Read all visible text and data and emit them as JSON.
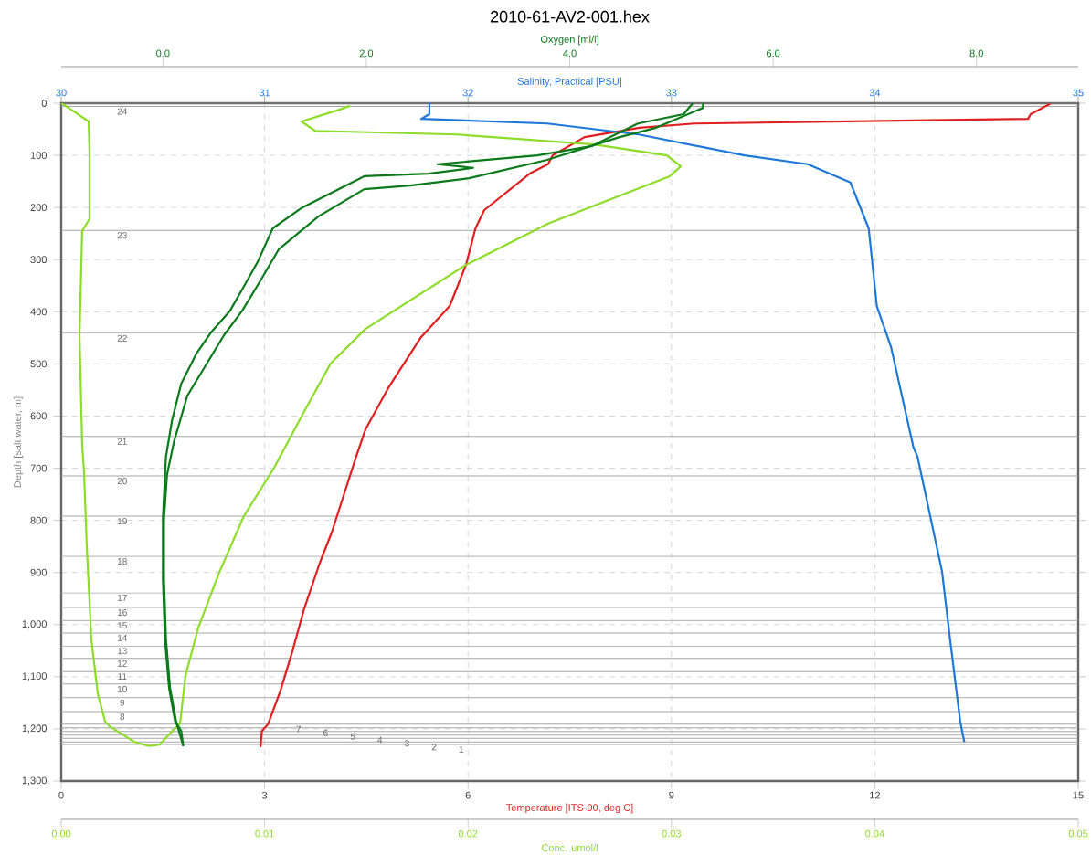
{
  "chart_data": [
    {
      "type": "line",
      "title": "2010-61-AV2-001.hex",
      "xlabel": "Temperature [ITS-90, deg C]",
      "xlim": [
        0,
        15
      ],
      "xticks": [
        0,
        3,
        6,
        9,
        12,
        15
      ],
      "x2label": "Salinity, Practical [PSU]",
      "x2lim": [
        30,
        35
      ],
      "x2ticks": [
        30,
        31,
        32,
        33,
        34,
        35
      ],
      "ylabel": "Depth [salt water, m]",
      "ylim": [
        1300,
        0
      ],
      "yticks": [
        0,
        100,
        200,
        300,
        400,
        500,
        600,
        700,
        800,
        900,
        {
          "value": 1000,
          "label": "1,000"
        },
        {
          "value": 1100,
          "label": "1,100"
        },
        {
          "value": 1200,
          "label": "1,200"
        },
        {
          "value": 1300,
          "label": "1,300"
        }
      ],
      "grid": true,
      "ref_lines": [
        {
          "axis": "y",
          "value": 1230
        },
        {
          "axis": "y",
          "value": 1225
        },
        {
          "axis": "y",
          "value": 1218
        },
        {
          "axis": "y",
          "value": 1212
        },
        {
          "axis": "y",
          "value": 1205
        },
        {
          "axis": "y",
          "value": 1198
        },
        {
          "axis": "y",
          "value": 1191
        },
        {
          "axis": "y",
          "value": 1167
        },
        {
          "axis": "y",
          "value": 1140
        },
        {
          "axis": "y",
          "value": 1114
        },
        {
          "axis": "y",
          "value": 1090
        },
        {
          "axis": "y",
          "value": 1065
        },
        {
          "axis": "y",
          "value": 1041
        },
        {
          "axis": "y",
          "value": 1016
        },
        {
          "axis": "y",
          "value": 992
        },
        {
          "axis": "y",
          "value": 967
        },
        {
          "axis": "y",
          "value": 939
        },
        {
          "axis": "y",
          "value": 869
        },
        {
          "axis": "y",
          "value": 792
        },
        {
          "axis": "y",
          "value": 715
        },
        {
          "axis": "y",
          "value": 639
        },
        {
          "axis": "y",
          "value": 441
        },
        {
          "axis": "y",
          "value": 244
        },
        {
          "axis": "y",
          "value": 6
        }
      ],
      "annotations": [
        {
          "text": "1",
          "x": 5.9,
          "y": 1230
        },
        {
          "text": "2",
          "x": 5.5,
          "y": 1225
        },
        {
          "text": "3",
          "x": 5.1,
          "y": 1218
        },
        {
          "text": "4",
          "x": 4.7,
          "y": 1212
        },
        {
          "text": "5",
          "x": 4.3,
          "y": 1205
        },
        {
          "text": "6",
          "x": 3.9,
          "y": 1198
        },
        {
          "text": "7",
          "x": 3.5,
          "y": 1191
        },
        {
          "text": "8",
          "x": 0.9,
          "y": 1167
        },
        {
          "text": "9",
          "x": 0.9,
          "y": 1140
        },
        {
          "text": "10",
          "x": 0.9,
          "y": 1114
        },
        {
          "text": "11",
          "x": 0.9,
          "y": 1090
        },
        {
          "text": "12",
          "x": 0.9,
          "y": 1065
        },
        {
          "text": "13",
          "x": 0.9,
          "y": 1041
        },
        {
          "text": "14",
          "x": 0.9,
          "y": 1016
        },
        {
          "text": "15",
          "x": 0.9,
          "y": 992
        },
        {
          "text": "16",
          "x": 0.9,
          "y": 967
        },
        {
          "text": "17",
          "x": 0.9,
          "y": 939
        },
        {
          "text": "18",
          "x": 0.9,
          "y": 869
        },
        {
          "text": "19",
          "x": 0.9,
          "y": 792
        },
        {
          "text": "20",
          "x": 0.9,
          "y": 715
        },
        {
          "text": "21",
          "x": 0.9,
          "y": 639
        },
        {
          "text": "22",
          "x": 0.9,
          "y": 441
        },
        {
          "text": "23",
          "x": 0.9,
          "y": 244
        },
        {
          "text": "24",
          "x": 0.9,
          "y": 6
        }
      ],
      "series": [
        {
          "color": "#e02020",
          "x": [
            14.6,
            14.3,
            14.26,
            9.34,
            8.53,
            7.72,
            7.25,
            7.18,
            6.91,
            6.24,
            6.11,
            5.97,
            5.73,
            5.3,
            4.82,
            4.49,
            4.35,
            3.99,
            3.81,
            3.58,
            3.41,
            3.23,
            3.05,
            2.96,
            2.94
          ],
          "values": [
            0,
            21,
            30,
            39,
            47,
            65,
            100,
            117,
            135,
            205,
            240,
            310,
            389,
            450,
            547,
            625,
            678,
            823,
            883,
            971,
            1051,
            1128,
            1191,
            1204,
            1235
          ]
        },
        {
          "color": "#1e78d8",
          "axis": "x2",
          "x": [
            31.81,
            31.81,
            31.77,
            32.39,
            32.84,
            33.36,
            33.67,
            33.88,
            33.97,
            34.01,
            34.08,
            34.19,
            34.21,
            34.33,
            34.37,
            34.42,
            34.44
          ],
          "values": [
            0,
            21,
            30,
            39,
            60,
            100,
            117,
            152,
            240,
            389,
            468,
            660,
            678,
            897,
            1028,
            1186,
            1225
          ]
        }
      ]
    },
    {
      "type": "line",
      "tick_labels": "x",
      "xlabel": "Conc. umol/l",
      "xlim": [
        0,
        0.05
      ],
      "xticks": [
        {
          "value": 0,
          "label": "0.00"
        },
        {
          "value": 0.01,
          "label": "0.01"
        },
        {
          "value": 0.02,
          "label": "0.02"
        },
        {
          "value": 0.03,
          "label": "0.03"
        },
        {
          "value": 0.04,
          "label": "0.04"
        },
        {
          "value": 0.05,
          "label": "0.05"
        }
      ],
      "x2label": "Oxygen [ml/l]",
      "x2lim": [
        -1,
        9
      ],
      "x2ticks": [
        {
          "value": 0,
          "label": "0.0"
        },
        {
          "value": 2,
          "label": "2.0"
        },
        {
          "value": 4,
          "label": "4.0"
        },
        {
          "value": 6,
          "label": "6.0"
        },
        {
          "value": 8,
          "label": "8.0"
        }
      ],
      "ylim": [
        1300,
        0
      ],
      "series": [
        {
          "color": "#0a7a1a",
          "axis": "x2",
          "x": [
            5.21,
            5.12,
            4.67,
            4.22,
            3.68,
            2.7,
            3.05,
            2.61,
            1.98,
            1.37,
            1.08,
            0.93,
            0.78,
            0.66,
            0.48,
            0.33,
            0.18,
            0.09,
            0.03,
            0.0,
            0.0,
            0.02,
            0.06,
            0.12,
            0.18,
            0.2
          ],
          "values": [
            0,
            21,
            39,
            82,
            100,
            117,
            124,
            135,
            140,
            200,
            240,
            305,
            357,
            398,
            438,
            480,
            538,
            608,
            678,
            795,
            911,
            1028,
            1121,
            1186,
            1204,
            1233
          ]
        },
        {
          "color": "#0a7a1a",
          "axis": "x2",
          "x": [
            5.31,
            5.31,
            4.85,
            4.49,
            3.77,
            3.01,
            2.43,
            1.98,
            1.53,
            1.14,
            0.96,
            0.78,
            0.6,
            0.42,
            0.24,
            0.11,
            0.04,
            0.01,
            0.01,
            0.03,
            0.07,
            0.13,
            0.2
          ],
          "values": [
            0,
            9,
            47,
            65,
            109,
            144,
            158,
            165,
            217,
            280,
            340,
            398,
            445,
            503,
            561,
            648,
            713,
            800,
            911,
            1028,
            1121,
            1186,
            1233
          ]
        },
        {
          "color": "#8cdc28",
          "x": [
            0,
            0.00013,
            0.00135,
            0.00139,
            0.00139,
            0.00103,
            0.0009,
            0.00103,
            0.00112,
            0.00126,
            0.00148,
            0.0018,
            0.00216,
            0.00238,
            0.00359,
            0.00431,
            0.00485,
            0.00539,
            0.00584,
            0.00611,
            0.00674,
            0.00777,
            0.00898,
            0.01047,
            0.01181,
            0.01325,
            0.01496,
            0.0199,
            0.02394,
            0.02992,
            0.03046,
            0.02978,
            0.02619,
            0.01945,
            0.01249,
            0.01181,
            0.0137,
            0.0142
          ],
          "values": [
            0,
            3,
            35,
            95,
            222,
            245,
            445,
            655,
            707,
            853,
            1028,
            1133,
            1186,
            1195,
            1225,
            1233,
            1230,
            1207,
            1190,
            1098,
            1006,
            900,
            792,
            699,
            601,
            499,
            433,
            310,
            231,
            140,
            121,
            100,
            79,
            60,
            53,
            35,
            12,
            5
          ]
        }
      ]
    }
  ]
}
